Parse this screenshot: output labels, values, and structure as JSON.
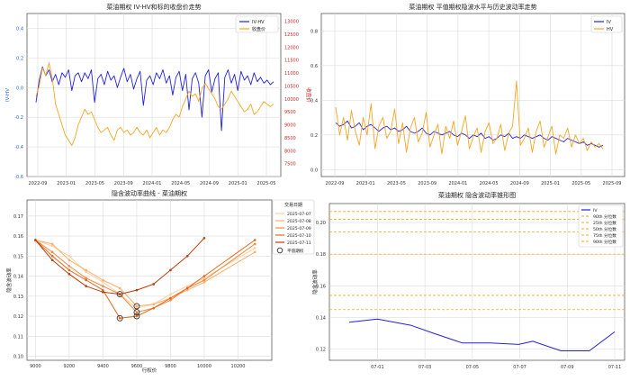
{
  "chart_data": [
    {
      "type": "line",
      "title": "菜油期权 IV-HV和标的收盘价走势",
      "ylabel": "IV-HV",
      "y2label": "收盘价",
      "x_ticks": [
        "2022-09",
        "2023-01",
        "2023-05",
        "2023-09",
        "2024-01",
        "2024-05",
        "2024-09",
        "2025-01",
        "2025-05"
      ],
      "ylim": [
        -0.6,
        0.5
      ],
      "y_ticks": [
        "-0.6",
        "-0.4",
        "-0.2",
        "0.0",
        "0.2",
        "0.4"
      ],
      "y2lim": [
        7000,
        13300
      ],
      "y2_ticks": [
        "7500",
        "8000",
        "8500",
        "9000",
        "9500",
        "10000",
        "10500",
        "11000",
        "11500",
        "12000",
        "12500",
        "13000"
      ],
      "legend_position": "top-right",
      "grid": true,
      "series": [
        {
          "name": "IV-HV",
          "axis": "left",
          "color": "#2222dd",
          "values": [
            -0.1,
            0.05,
            0.14,
            0.08,
            0.12,
            0.04,
            0.09,
            0.02,
            0.1,
            0.07,
            0.12,
            -0.02,
            0.08,
            0.1,
            0.04,
            0.1,
            0.06,
            0.12,
            -0.1,
            0.06,
            0.09,
            0.02,
            0.11,
            0.05,
            0.08,
            0.0,
            0.07,
            0.13,
            0.04,
            0.09,
            -0.01,
            0.06,
            0.11,
            -0.12,
            0.05,
            0.08,
            0.02,
            0.1,
            0.06,
            0.12,
            0.03,
            0.08,
            -0.05,
            0.07,
            0.11,
            -0.02,
            0.09,
            -0.15,
            0.06,
            0.1,
            0.03,
            -0.2,
            0.08,
            0.12,
            -0.03,
            0.06,
            0.1,
            -0.29,
            0.07,
            0.12,
            0.03,
            0.09,
            -0.02,
            0.11,
            0.05,
            0.08,
            0.02,
            0.1,
            0.04,
            0.07,
            0.03,
            0.05,
            0.02,
            0.04
          ]
        },
        {
          "name": "收盘价",
          "axis": "right",
          "color": "#f5a623",
          "values": [
            10100,
            10500,
            11200,
            10900,
            11400,
            10800,
            9800,
            9400,
            9000,
            8600,
            8400,
            8200,
            8500,
            9000,
            9300,
            9600,
            9400,
            9500,
            9200,
            8900,
            8700,
            8800,
            8900,
            8600,
            8400,
            8800,
            8900,
            8700,
            8800,
            8600,
            8700,
            8900,
            8700,
            8600,
            8800,
            8500,
            8700,
            8900,
            8600,
            8800,
            8700,
            8900,
            9200,
            9400,
            9300,
            9700,
            10000,
            10300,
            10100,
            10200,
            9900,
            10400,
            10600,
            10400,
            10200,
            10000,
            9700,
            9600,
            9800,
            10000,
            10300,
            10100,
            9900,
            9700,
            9500,
            9600,
            9800,
            9400,
            9500,
            9700,
            9900,
            9800,
            9700,
            9800
          ]
        }
      ]
    },
    {
      "type": "line",
      "title": "菜油期权 平值期权隐波水平与历史波动率走势",
      "x_ticks": [
        "2022-09",
        "2023-01",
        "2023-05",
        "2023-09",
        "2024-01",
        "2024-05",
        "2024-09",
        "2025-01",
        "2025-05",
        "2025-09"
      ],
      "ylim": [
        -0.04,
        0.9
      ],
      "y_ticks": [
        "0.0",
        "0.2",
        "0.4",
        "0.6",
        "0.8"
      ],
      "legend_position": "top-right",
      "grid": true,
      "series": [
        {
          "name": "IV",
          "color": "#2222dd",
          "values": [
            0.27,
            0.25,
            0.26,
            0.28,
            0.24,
            0.25,
            0.27,
            0.23,
            0.25,
            0.26,
            0.24,
            0.22,
            0.24,
            0.25,
            0.23,
            0.24,
            0.22,
            0.23,
            0.25,
            0.22,
            0.21,
            0.22,
            0.24,
            0.21,
            0.2,
            0.22,
            0.21,
            0.2,
            0.21,
            0.22,
            0.2,
            0.19,
            0.21,
            0.2,
            0.18,
            0.2,
            0.19,
            0.21,
            0.18,
            0.19,
            0.17,
            0.18,
            0.2,
            0.19,
            0.21,
            0.18,
            0.19,
            0.18,
            0.2,
            0.19,
            0.18,
            0.19,
            0.2,
            0.18,
            0.17,
            0.19,
            0.18,
            0.17,
            0.16,
            0.18,
            0.17,
            0.16,
            0.15,
            0.16,
            0.14,
            0.15,
            0.14,
            0.13,
            0.14
          ]
        },
        {
          "name": "HV",
          "color": "#f5a623",
          "values": [
            0.36,
            0.2,
            0.3,
            0.17,
            0.34,
            0.22,
            0.14,
            0.3,
            0.2,
            0.38,
            0.12,
            0.25,
            0.3,
            0.18,
            0.22,
            0.35,
            0.15,
            0.27,
            0.1,
            0.24,
            0.3,
            0.16,
            0.21,
            0.33,
            0.13,
            0.2,
            0.26,
            0.09,
            0.25,
            0.18,
            0.28,
            0.14,
            0.22,
            0.31,
            0.12,
            0.19,
            0.24,
            0.1,
            0.22,
            0.27,
            0.15,
            0.18,
            0.26,
            0.11,
            0.21,
            0.25,
            0.51,
            0.14,
            0.18,
            0.24,
            0.1,
            0.22,
            0.28,
            0.13,
            0.19,
            0.25,
            0.09,
            0.2,
            0.18,
            0.24,
            0.13,
            0.2,
            0.15,
            0.18,
            0.11,
            0.16,
            0.13,
            0.15,
            0.12
          ]
        }
      ]
    },
    {
      "type": "line",
      "title": "隐含波动率曲线 - 菜油期权",
      "xlabel": "行权价",
      "ylabel": "隐含波动率",
      "xlim": [
        8950,
        10400
      ],
      "ylim": [
        0.098,
        0.178
      ],
      "x_ticks": [
        9000,
        9200,
        9400,
        9600,
        9800,
        10000,
        10200
      ],
      "y_ticks": [
        0.1,
        0.11,
        0.12,
        0.13,
        0.14,
        0.15,
        0.16,
        0.17
      ],
      "legend_title": "交易日期",
      "legend_position": "top-right",
      "atm_label": "平值期权",
      "grid": true,
      "series": [
        {
          "name": "2025-07-07",
          "color": "#fdd0a2",
          "points": [
            [
              9000,
              0.158
            ],
            [
              9100,
              0.155
            ],
            [
              9200,
              0.15
            ],
            [
              9300,
              0.142
            ],
            [
              9400,
              0.137
            ],
            [
              9500,
              0.131
            ],
            [
              9600,
              0.124
            ],
            [
              9700,
              0.126
            ],
            [
              9800,
              0.131
            ],
            [
              9900,
              0.135
            ],
            [
              10000,
              0.139
            ],
            [
              10300,
              0.154
            ]
          ]
        },
        {
          "name": "2025-07-08",
          "color": "#fdae6b",
          "points": [
            [
              9000,
              0.158
            ],
            [
              9100,
              0.156
            ],
            [
              9200,
              0.148
            ],
            [
              9300,
              0.143
            ],
            [
              9400,
              0.138
            ],
            [
              9500,
              0.134
            ],
            [
              9600,
              0.125
            ],
            [
              9700,
              0.126
            ],
            [
              9800,
              0.129
            ],
            [
              9900,
              0.133
            ],
            [
              10000,
              0.137
            ],
            [
              10300,
              0.152
            ]
          ]
        },
        {
          "name": "2025-07-09",
          "color": "#f6883a",
          "points": [
            [
              9000,
              0.158
            ],
            [
              9100,
              0.152
            ],
            [
              9200,
              0.145
            ],
            [
              9300,
              0.139
            ],
            [
              9400,
              0.135
            ],
            [
              9500,
              0.131
            ],
            [
              9600,
              0.122
            ],
            [
              9700,
              0.124
            ],
            [
              9800,
              0.128
            ],
            [
              9900,
              0.134
            ],
            [
              10000,
              0.138
            ],
            [
              10300,
              0.156
            ]
          ]
        },
        {
          "name": "2025-07-10",
          "color": "#e0661d",
          "points": [
            [
              9000,
              0.158
            ],
            [
              9100,
              0.15
            ],
            [
              9200,
              0.143
            ],
            [
              9300,
              0.138
            ],
            [
              9400,
              0.133
            ],
            [
              9500,
              0.119
            ],
            [
              9600,
              0.12
            ],
            [
              9700,
              0.124
            ],
            [
              9800,
              0.129
            ],
            [
              9900,
              0.134
            ],
            [
              10000,
              0.14
            ],
            [
              10300,
              0.158
            ]
          ]
        },
        {
          "name": "2025-07-11",
          "color": "#b83d0a",
          "points": [
            [
              9000,
              0.158
            ],
            [
              9100,
              0.148
            ],
            [
              9200,
              0.141
            ],
            [
              9300,
              0.135
            ],
            [
              9400,
              0.132
            ],
            [
              9500,
              0.131
            ],
            [
              9600,
              0.133
            ],
            [
              9700,
              0.136
            ],
            [
              9800,
              0.143
            ],
            [
              9900,
              0.15
            ],
            [
              10000,
              0.159
            ]
          ]
        }
      ],
      "atm_points": [
        [
          9500,
          0.131
        ],
        [
          9500,
          0.119
        ],
        [
          9600,
          0.125
        ],
        [
          9600,
          0.122
        ],
        [
          9600,
          0.12
        ]
      ]
    },
    {
      "type": "line",
      "title": "菜油期权 隐含波动率锥形图",
      "ylabel": "隐含波动率",
      "x_ticks": [
        "07-01",
        "07-03",
        "07-05",
        "07-07",
        "07-09",
        "07-11"
      ],
      "ylim": [
        0.113,
        0.212
      ],
      "y_ticks": [
        "0.12",
        "0.14",
        "0.16",
        "0.18",
        "0.20"
      ],
      "legend_position": "top-right",
      "grid": true,
      "series": [
        {
          "name": "IV",
          "color": "#2222dd",
          "x": [
            0.0,
            1.0,
            2.2,
            3.0,
            4.0,
            5.0,
            6.0,
            6.5,
            7.5,
            8.5,
            9.4
          ],
          "values": [
            0.137,
            0.139,
            0.135,
            0.13,
            0.124,
            0.124,
            0.123,
            0.125,
            0.119,
            0.119,
            0.131
          ]
        }
      ],
      "percentiles": [
        {
          "name": "90th 分位数",
          "value": 0.207,
          "color": "#f5a623"
        },
        {
          "name": "25th 分位数",
          "value": 0.202,
          "color": "#f5a623"
        },
        {
          "name": "50th 分位数",
          "value": 0.194,
          "color": "#f5a623"
        },
        {
          "name": "75th 分位数",
          "value": 0.18,
          "color": "#f5a623"
        },
        {
          "name": "90th 分位数",
          "value": 0.154,
          "color": "#f5a623"
        },
        {
          "name": "",
          "value": 0.145,
          "color": "#f5a623"
        }
      ]
    }
  ]
}
